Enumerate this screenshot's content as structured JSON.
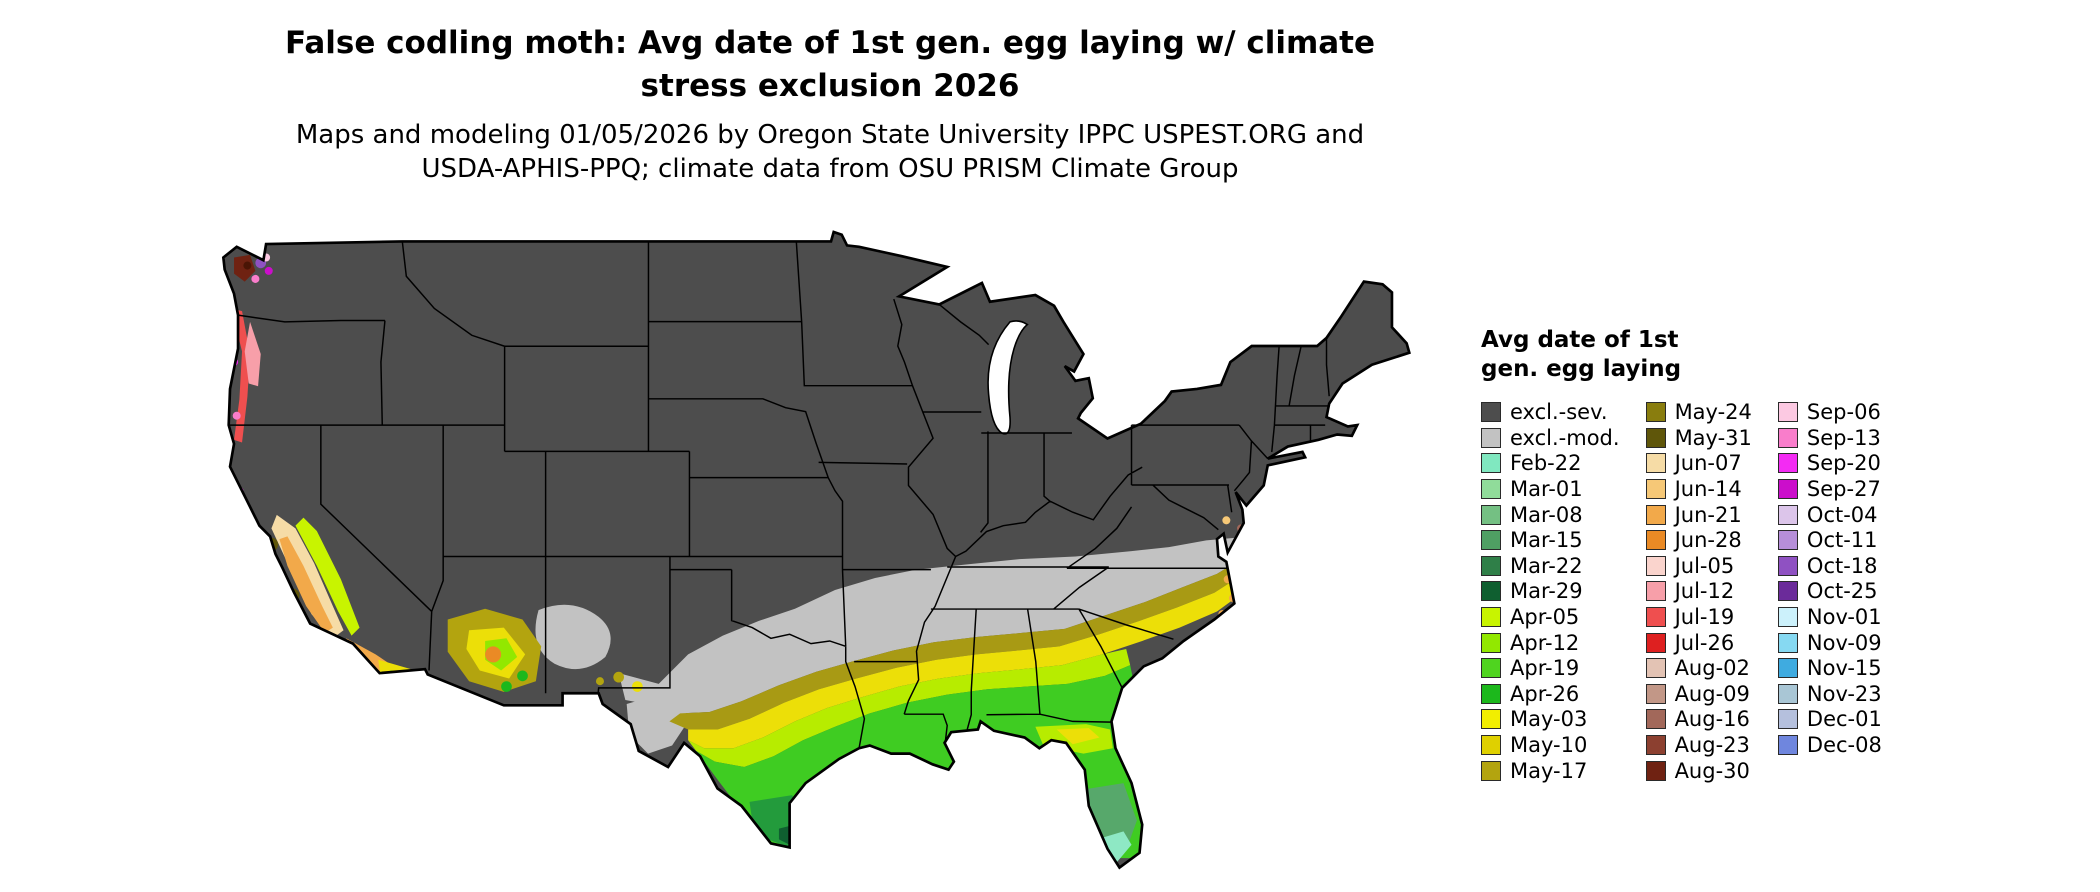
{
  "title": {
    "line1": "False codling moth: Avg date of 1st gen. egg laying w/ climate",
    "line2": "stress exclusion 2026"
  },
  "subtitle": {
    "line1": "Maps and modeling 01/05/2026 by Oregon State University IPPC USPEST.ORG and",
    "line2": "USDA-APHIS-PPQ; climate data from OSU PRISM Climate Group"
  },
  "legend": {
    "title_line1": "Avg date of 1st",
    "title_line2": "gen. egg laying",
    "columns": [
      {
        "entries": [
          {
            "label": "excl.-sev.",
            "color": "#4d4d4d"
          },
          {
            "label": "excl.-mod.",
            "color": "#c2c2c2"
          },
          {
            "label": "Feb-22",
            "color": "#80e8c0"
          },
          {
            "label": "Mar-01",
            "color": "#90dc9a"
          },
          {
            "label": "Mar-08",
            "color": "#74c083"
          },
          {
            "label": "Mar-15",
            "color": "#4f9f63"
          },
          {
            "label": "Mar-22",
            "color": "#2f7f48"
          },
          {
            "label": "Mar-29",
            "color": "#0f5f30"
          },
          {
            "label": "Apr-05",
            "color": "#c8f400"
          },
          {
            "label": "Apr-12",
            "color": "#92e800"
          },
          {
            "label": "Apr-19",
            "color": "#4fd41f"
          },
          {
            "label": "Apr-26",
            "color": "#1cb81c"
          },
          {
            "label": "May-03",
            "color": "#f2ee00"
          },
          {
            "label": "May-10",
            "color": "#dfd000"
          },
          {
            "label": "May-17",
            "color": "#b3a40f"
          }
        ]
      },
      {
        "entries": [
          {
            "label": "May-24",
            "color": "#897d0e"
          },
          {
            "label": "May-31",
            "color": "#5f560a"
          },
          {
            "label": "Jun-07",
            "color": "#f6dca6"
          },
          {
            "label": "Jun-14",
            "color": "#f6c877"
          },
          {
            "label": "Jun-21",
            "color": "#f2a94a"
          },
          {
            "label": "Jun-28",
            "color": "#ea8a25"
          },
          {
            "label": "Jul-05",
            "color": "#fad4cd"
          },
          {
            "label": "Jul-12",
            "color": "#f79fa9"
          },
          {
            "label": "Jul-19",
            "color": "#ef4f4f"
          },
          {
            "label": "Jul-26",
            "color": "#de2020"
          },
          {
            "label": "Aug-02",
            "color": "#e3c3b4"
          },
          {
            "label": "Aug-09",
            "color": "#c29787"
          },
          {
            "label": "Aug-16",
            "color": "#a2685a"
          },
          {
            "label": "Aug-23",
            "color": "#8c4030"
          },
          {
            "label": "Aug-30",
            "color": "#6f2212"
          }
        ]
      },
      {
        "entries": [
          {
            "label": "Sep-06",
            "color": "#fcc9e2"
          },
          {
            "label": "Sep-13",
            "color": "#f97dcb"
          },
          {
            "label": "Sep-20",
            "color": "#f32bf3"
          },
          {
            "label": "Sep-27",
            "color": "#cb0ecb"
          },
          {
            "label": "Oct-04",
            "color": "#dcc5ea"
          },
          {
            "label": "Oct-11",
            "color": "#b68ed9"
          },
          {
            "label": "Oct-18",
            "color": "#8f51c2"
          },
          {
            "label": "Oct-25",
            "color": "#6b2b9a"
          },
          {
            "label": "Nov-01",
            "color": "#ccf1fb"
          },
          {
            "label": "Nov-09",
            "color": "#86d9f2"
          },
          {
            "label": "Nov-15",
            "color": "#3fabe0"
          },
          {
            "label": "Nov-23",
            "color": "#a9c6d5"
          },
          {
            "label": "Dec-01",
            "color": "#b5c0dd"
          },
          {
            "label": "Dec-08",
            "color": "#6f86de"
          }
        ]
      }
    ]
  },
  "map_colors": {
    "excluded_severe": "#4d4d4d",
    "excluded_moderate": "#c2c2c2",
    "outline": "#000000",
    "background": "#ffffff"
  }
}
